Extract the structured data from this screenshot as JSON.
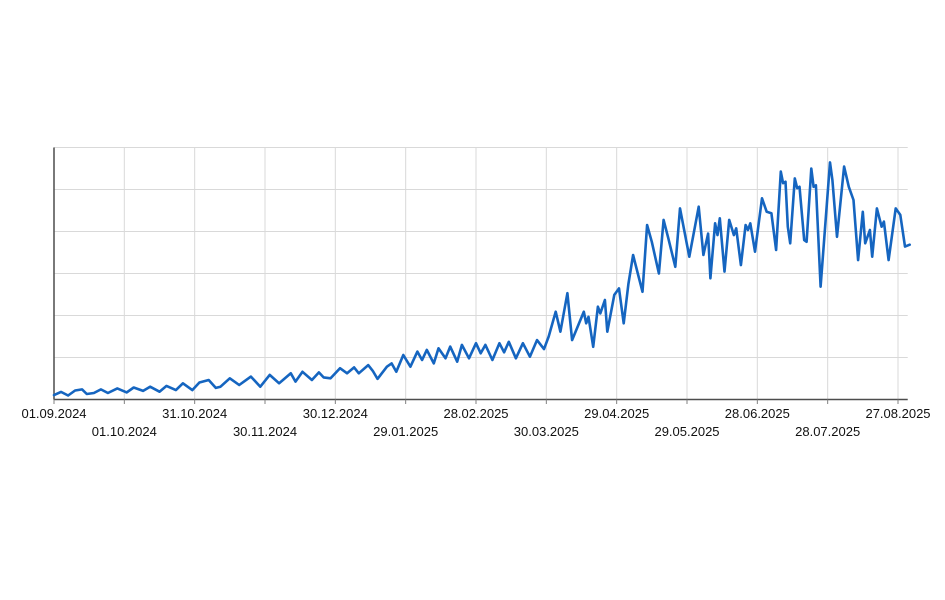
{
  "chart_data": {
    "type": "line",
    "title": "",
    "ylabel": "",
    "xlabel": "",
    "legend": "none",
    "grid": true,
    "x_unit": "days since 01.09.2024",
    "x_tick_step_days": 30,
    "x_tick_days": [
      0,
      30,
      60,
      90,
      120,
      150,
      180,
      210,
      240,
      270,
      300,
      330,
      360
    ],
    "x_tick_labels": [
      "01.09.2024",
      "01.10.2024",
      "31.10.2024",
      "30.11.2024",
      "30.12.2024",
      "29.01.2025",
      "28.02.2025",
      "30.03.2025",
      "29.04.2025",
      "29.05.2025",
      "28.06.2025",
      "28.07.2025",
      "27.08.2025"
    ],
    "ylim": [
      0,
      120
    ],
    "y_gridline_step": 20,
    "x_data_max_day": 365,
    "points": [
      [
        0,
        2.1
      ],
      [
        3,
        3.6
      ],
      [
        6,
        1.9
      ],
      [
        9,
        4.3
      ],
      [
        12,
        4.8
      ],
      [
        14,
        2.6
      ],
      [
        17,
        3.1
      ],
      [
        20,
        4.8
      ],
      [
        23,
        3.1
      ],
      [
        27,
        5.3
      ],
      [
        31,
        3.4
      ],
      [
        34,
        5.7
      ],
      [
        38,
        4.1
      ],
      [
        41,
        6.1
      ],
      [
        45,
        3.7
      ],
      [
        48,
        6.5
      ],
      [
        52,
        4.5
      ],
      [
        55,
        7.7
      ],
      [
        59,
        4.5
      ],
      [
        62,
        8.1
      ],
      [
        66,
        9.3
      ],
      [
        69,
        5.5
      ],
      [
        71,
        6.1
      ],
      [
        75,
        10.1
      ],
      [
        79,
        6.9
      ],
      [
        84,
        10.9
      ],
      [
        88,
        6.1
      ],
      [
        92,
        11.7
      ],
      [
        96,
        7.7
      ],
      [
        101,
        12.5
      ],
      [
        103,
        8.5
      ],
      [
        106,
        13.2
      ],
      [
        110,
        9.3
      ],
      [
        113,
        12.9
      ],
      [
        115,
        10.5
      ],
      [
        118,
        10.1
      ],
      [
        122,
        14.9
      ],
      [
        125,
        12.5
      ],
      [
        128,
        15.3
      ],
      [
        130,
        12.5
      ],
      [
        134,
        16.4
      ],
      [
        136,
        13.6
      ],
      [
        138,
        9.8
      ],
      [
        142,
        15.6
      ],
      [
        144,
        17.2
      ],
      [
        146,
        13.2
      ],
      [
        149,
        21.2
      ],
      [
        152,
        15.6
      ],
      [
        155,
        22.8
      ],
      [
        157,
        18.8
      ],
      [
        159,
        23.6
      ],
      [
        162,
        17.2
      ],
      [
        164,
        24.4
      ],
      [
        167,
        19.6
      ],
      [
        169,
        25.2
      ],
      [
        172,
        18.0
      ],
      [
        174,
        26.0
      ],
      [
        177,
        19.6
      ],
      [
        180,
        26.8
      ],
      [
        182,
        22.0
      ],
      [
        184,
        26.0
      ],
      [
        187,
        18.8
      ],
      [
        190,
        26.8
      ],
      [
        192,
        22.5
      ],
      [
        194,
        27.5
      ],
      [
        197,
        19.6
      ],
      [
        200,
        26.8
      ],
      [
        203,
        20.4
      ],
      [
        206,
        28.3
      ],
      [
        209,
        24.0
      ],
      [
        211,
        30.0
      ],
      [
        214,
        41.8
      ],
      [
        216,
        32.3
      ],
      [
        219,
        50.6
      ],
      [
        221,
        28.3
      ],
      [
        226,
        41.8
      ],
      [
        227,
        36.3
      ],
      [
        228,
        39.4
      ],
      [
        230,
        25.1
      ],
      [
        232,
        44.2
      ],
      [
        233,
        41.0
      ],
      [
        235,
        47.4
      ],
      [
        236,
        32.3
      ],
      [
        239,
        49.8
      ],
      [
        241,
        52.9
      ],
      [
        243,
        36.3
      ],
      [
        245,
        55.0
      ],
      [
        247,
        68.8
      ],
      [
        249,
        60.0
      ],
      [
        251,
        51.3
      ],
      [
        253,
        83.1
      ],
      [
        255,
        75.1
      ],
      [
        258,
        60.0
      ],
      [
        260,
        85.5
      ],
      [
        262,
        77.0
      ],
      [
        265,
        63.2
      ],
      [
        267,
        91.0
      ],
      [
        271,
        68.0
      ],
      [
        275,
        91.8
      ],
      [
        277,
        68.8
      ],
      [
        279,
        79.0
      ],
      [
        280,
        57.7
      ],
      [
        282,
        83.9
      ],
      [
        283,
        78.3
      ],
      [
        284,
        86.3
      ],
      [
        286,
        60.9
      ],
      [
        288,
        85.5
      ],
      [
        290,
        78.3
      ],
      [
        291,
        81.5
      ],
      [
        293,
        64.0
      ],
      [
        295,
        83.1
      ],
      [
        296,
        80.7
      ],
      [
        297,
        83.9
      ],
      [
        299,
        70.4
      ],
      [
        302,
        95.8
      ],
      [
        304,
        89.4
      ],
      [
        306,
        88.7
      ],
      [
        308,
        71.2
      ],
      [
        310,
        108.5
      ],
      [
        311,
        103.0
      ],
      [
        312,
        103.7
      ],
      [
        313,
        82.3
      ],
      [
        314,
        74.4
      ],
      [
        316,
        105.3
      ],
      [
        317,
        100.6
      ],
      [
        318,
        101.3
      ],
      [
        320,
        75.9
      ],
      [
        321,
        75.1
      ],
      [
        323,
        110.0
      ],
      [
        324,
        101.3
      ],
      [
        325,
        102.0
      ],
      [
        327,
        53.7
      ],
      [
        331,
        112.9
      ],
      [
        332,
        104.5
      ],
      [
        334,
        77.5
      ],
      [
        337,
        110.9
      ],
      [
        339,
        101.3
      ],
      [
        341,
        95.0
      ],
      [
        343,
        66.4
      ],
      [
        345,
        89.4
      ],
      [
        346,
        74.4
      ],
      [
        348,
        80.7
      ],
      [
        349,
        68.0
      ],
      [
        351,
        91.0
      ],
      [
        353,
        82.3
      ],
      [
        354,
        84.7
      ],
      [
        356,
        66.4
      ],
      [
        359,
        91.0
      ],
      [
        361,
        87.9
      ],
      [
        363,
        72.8
      ],
      [
        365,
        73.7
      ]
    ],
    "colors": {
      "line": "#1565c0",
      "gridline": "#d9d9d9",
      "axis": "#4d4d4d",
      "tick": "#808080",
      "label_text": "#111111",
      "background": "#ffffff"
    }
  }
}
